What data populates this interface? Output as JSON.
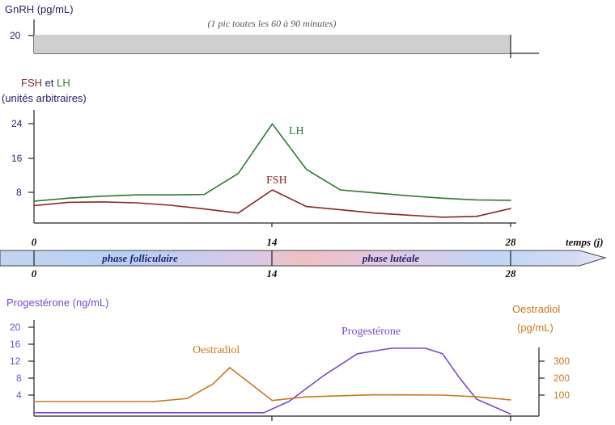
{
  "gnrh_panel": {
    "axis_label": "GnRH (pg/mL)",
    "tick_20": "20",
    "annotation": "(1 pic toutes les 60 à 90 minutes)"
  },
  "fsh_lh_panel": {
    "label_fsh": "FSH",
    "label_et": " et ",
    "label_lh": "LH",
    "units": "(unités arbitraires)",
    "tick_24": "24",
    "tick_16": "16",
    "tick_8": "8",
    "series_label_lh": "LH",
    "series_label_fsh": "FSH"
  },
  "timeline": {
    "x_label": "temps (j)",
    "top_ticks": [
      "0",
      "14",
      "28"
    ],
    "bottom_ticks": [
      "0",
      "14",
      "28"
    ],
    "phase_follicular": "phase folliculaire",
    "phase_luteal": "phase lutéale"
  },
  "hormone_panel": {
    "left_axis_label": "Progestérone (ng/mL)",
    "left_ticks": [
      "20",
      "16",
      "12",
      "8",
      "4"
    ],
    "right_axis_label_line1": "Oestradiol",
    "right_axis_label_line2": "(pg/mL)",
    "right_ticks": [
      "300",
      "200",
      "100"
    ],
    "series_label_oestradiol": "Oestradiol",
    "series_label_progesterone": "Progestérone"
  },
  "colors": {
    "navy": "#24246a",
    "lh": "#2c7a2c",
    "fsh": "#8a2424",
    "progesterone": "#7a48d0",
    "oestradiol": "#c8781e",
    "gnrh_fill": "#cfcfcf",
    "phase_blue": "#bdd2f4",
    "phase_pink": "#efc0c0",
    "axis": "#222222"
  },
  "chart_data": [
    {
      "type": "area",
      "axis_label": "GnRH (pg/mL)",
      "x_label": "temps (j)",
      "x": [
        0,
        28
      ],
      "series": [
        {
          "name": "GnRH",
          "values": [
            20,
            20
          ]
        }
      ],
      "y_ticks": [
        20
      ],
      "annotation": "(1 pic toutes les 60 à 90 minutes)"
    },
    {
      "type": "line",
      "axis_label": "FSH et LH (unités arbitraires)",
      "x_label": "temps (j)",
      "ylim": [
        0,
        27
      ],
      "y_ticks": [
        8,
        16,
        24
      ],
      "x_ticks": [
        0,
        14,
        28
      ],
      "series": [
        {
          "name": "LH",
          "x": [
            0,
            2,
            4,
            6,
            8,
            10,
            12,
            14,
            16,
            18,
            20,
            22,
            24,
            26,
            28
          ],
          "values": [
            5.3,
            6.0,
            6.5,
            6.8,
            6.8,
            6.9,
            12,
            24,
            13,
            8,
            7.3,
            6.6,
            6.0,
            5.6,
            5.5
          ]
        },
        {
          "name": "FSH",
          "x": [
            0,
            2,
            4,
            6,
            8,
            10,
            12,
            14,
            16,
            18,
            20,
            22,
            24,
            26,
            28
          ],
          "values": [
            4.2,
            5.0,
            5.1,
            4.9,
            4.3,
            3.4,
            2.4,
            8,
            4.0,
            3.2,
            2.4,
            1.9,
            1.4,
            1.6,
            3.5
          ]
        }
      ]
    },
    {
      "type": "line",
      "axis_label": "Progestérone (ng/mL)",
      "right_axis_label": "Oestradiol (pg/mL)",
      "x_label": "temps (j)",
      "x_ticks": [
        0,
        14,
        28
      ],
      "ylim": [
        0,
        22
      ],
      "y_ticks": [
        4,
        8,
        12,
        16,
        20
      ],
      "y2lim": [
        0,
        450
      ],
      "y2_ticks": [
        100,
        200,
        300
      ],
      "series": [
        {
          "name": "Progestérone",
          "axis": "left",
          "x": [
            0,
            4,
            8,
            12,
            13.5,
            15,
            17,
            19,
            21,
            23,
            24,
            25,
            26,
            28
          ],
          "values": [
            0.8,
            0.8,
            0.8,
            0.8,
            0.8,
            3.5,
            9.5,
            14.7,
            16.0,
            16.0,
            14.7,
            9.0,
            4.0,
            0.5
          ]
        },
        {
          "name": "Oestradiol",
          "axis": "right",
          "x": [
            0,
            3,
            7,
            9,
            10.5,
            11.5,
            14,
            16,
            20,
            24,
            26,
            28
          ],
          "values": [
            62,
            62,
            62,
            80,
            165,
            262,
            68,
            90,
            102,
            100,
            90,
            72
          ]
        }
      ]
    }
  ]
}
